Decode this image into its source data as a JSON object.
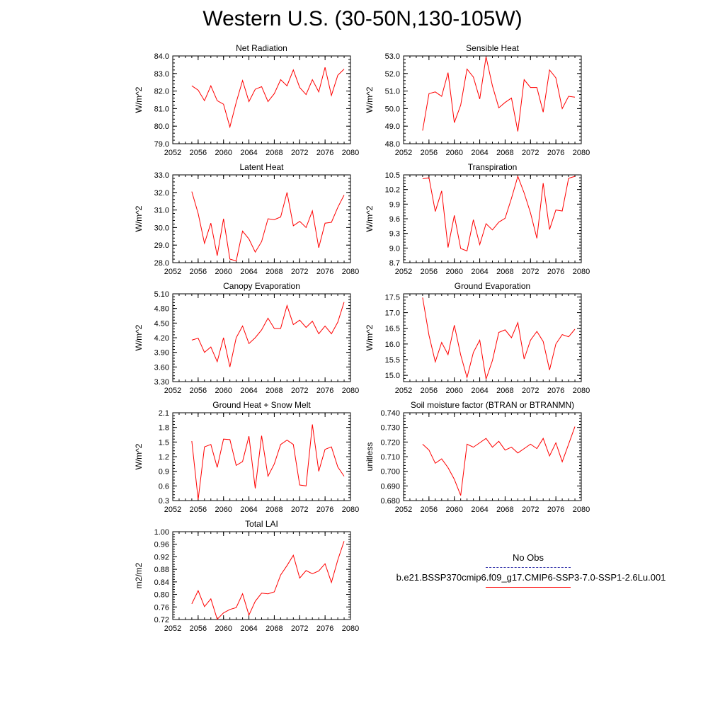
{
  "title": "Western U.S. (30-50N,130-105W)",
  "legend": {
    "obs_label": "No Obs",
    "case_label": "b.e21.BSSP370cmip6.f09_g17.CMIP6-SSP3-7.0-SSP1-2.6Lu.001",
    "obs_color": "#3333aa",
    "case_color": "#ff0000"
  },
  "chart_data": [
    {
      "type": "line",
      "title": "Net Radiation",
      "ylabel": "W/m^2",
      "xlim": [
        2052,
        2080
      ],
      "ylim": [
        79.0,
        84.0
      ],
      "xticks": [
        "2052",
        "2056",
        "2060",
        "2064",
        "2068",
        "2072",
        "2076",
        "2080"
      ],
      "yticks": [
        "79.0",
        "80.0",
        "81.0",
        "82.0",
        "83.0",
        "84.0"
      ],
      "x": [
        2055,
        2056,
        2057,
        2058,
        2059,
        2060,
        2061,
        2062,
        2063,
        2064,
        2065,
        2066,
        2067,
        2068,
        2069,
        2070,
        2071,
        2072,
        2073,
        2074,
        2075,
        2076,
        2077,
        2078,
        2079
      ],
      "series": [
        {
          "values": [
            82.3,
            82.05,
            81.45,
            82.3,
            81.45,
            81.25,
            79.95,
            81.35,
            82.6,
            81.4,
            82.1,
            82.25,
            81.4,
            81.85,
            82.65,
            82.3,
            83.2,
            82.2,
            81.8,
            82.65,
            81.95,
            83.35,
            81.75,
            82.9,
            83.25
          ]
        }
      ]
    },
    {
      "type": "line",
      "title": "Sensible Heat",
      "ylabel": "W/m^2",
      "xlim": [
        2052,
        2080
      ],
      "ylim": [
        48.0,
        53.0
      ],
      "xticks": [
        "2052",
        "2056",
        "2060",
        "2064",
        "2068",
        "2072",
        "2076",
        "2080"
      ],
      "yticks": [
        "48.0",
        "49.0",
        "50.0",
        "51.0",
        "52.0",
        "53.0"
      ],
      "x": [
        2055,
        2056,
        2057,
        2058,
        2059,
        2060,
        2061,
        2062,
        2063,
        2064,
        2065,
        2066,
        2067,
        2068,
        2069,
        2070,
        2071,
        2072,
        2073,
        2074,
        2075,
        2076,
        2077,
        2078,
        2079
      ],
      "series": [
        {
          "values": [
            48.75,
            50.85,
            50.95,
            50.7,
            52.05,
            49.2,
            50.2,
            52.25,
            51.8,
            50.55,
            52.95,
            51.3,
            50.05,
            50.35,
            50.6,
            48.7,
            51.65,
            51.2,
            51.2,
            49.8,
            52.2,
            51.75,
            50.0,
            50.7,
            50.65
          ]
        }
      ]
    },
    {
      "type": "line",
      "title": "Latent Heat",
      "ylabel": "W/m^2",
      "xlim": [
        2052,
        2080
      ],
      "ylim": [
        28.0,
        33.0
      ],
      "xticks": [
        "2052",
        "2056",
        "2060",
        "2064",
        "2068",
        "2072",
        "2076",
        "2080"
      ],
      "yticks": [
        "28.0",
        "29.0",
        "30.0",
        "31.0",
        "32.0",
        "33.0"
      ],
      "x": [
        2055,
        2056,
        2057,
        2058,
        2059,
        2060,
        2061,
        2062,
        2063,
        2064,
        2065,
        2066,
        2067,
        2068,
        2069,
        2070,
        2071,
        2072,
        2073,
        2074,
        2075,
        2076,
        2077,
        2078,
        2079
      ],
      "series": [
        {
          "values": [
            32.05,
            30.8,
            29.1,
            30.25,
            28.4,
            30.5,
            28.2,
            28.1,
            29.8,
            29.35,
            28.6,
            29.2,
            30.5,
            30.45,
            30.6,
            32.0,
            30.1,
            30.35,
            30.0,
            30.95,
            28.85,
            30.25,
            30.3,
            31.15,
            31.85
          ]
        }
      ]
    },
    {
      "type": "line",
      "title": "Transpiration",
      "ylabel": "W/m^2",
      "xlim": [
        2052,
        2080
      ],
      "ylim": [
        8.7,
        10.5
      ],
      "xticks": [
        "2052",
        "2056",
        "2060",
        "2064",
        "2068",
        "2072",
        "2076",
        "2080"
      ],
      "yticks": [
        "8.7",
        "9.0",
        "9.3",
        "9.6",
        "9.9",
        "10.2",
        "10.5"
      ],
      "x": [
        2055,
        2056,
        2057,
        2058,
        2059,
        2060,
        2061,
        2062,
        2063,
        2064,
        2065,
        2066,
        2067,
        2068,
        2069,
        2070,
        2071,
        2072,
        2073,
        2074,
        2075,
        2076,
        2077,
        2078,
        2079
      ],
      "series": [
        {
          "values": [
            10.42,
            10.44,
            9.75,
            10.17,
            9.01,
            9.67,
            8.99,
            8.94,
            9.58,
            9.07,
            9.5,
            9.37,
            9.53,
            9.61,
            10.02,
            10.47,
            10.13,
            9.72,
            9.2,
            10.33,
            9.38,
            9.78,
            9.76,
            10.43,
            10.47
          ]
        }
      ]
    },
    {
      "type": "line",
      "title": "Canopy Evaporation",
      "ylabel": "W/m^2",
      "xlim": [
        2052,
        2080
      ],
      "ylim": [
        3.3,
        5.1
      ],
      "xticks": [
        "2052",
        "2056",
        "2060",
        "2064",
        "2068",
        "2072",
        "2076",
        "2080"
      ],
      "yticks": [
        "3.30",
        "3.60",
        "3.90",
        "4.20",
        "4.50",
        "4.80",
        "5.10"
      ],
      "x": [
        2055,
        2056,
        2057,
        2058,
        2059,
        2060,
        2061,
        2062,
        2063,
        2064,
        2065,
        2066,
        2067,
        2068,
        2069,
        2070,
        2071,
        2072,
        2073,
        2074,
        2075,
        2076,
        2077,
        2078,
        2079
      ],
      "series": [
        {
          "values": [
            4.15,
            4.19,
            3.9,
            4.01,
            3.71,
            4.2,
            3.6,
            4.2,
            4.44,
            4.08,
            4.2,
            4.36,
            4.6,
            4.39,
            4.39,
            4.86,
            4.47,
            4.56,
            4.41,
            4.54,
            4.28,
            4.44,
            4.28,
            4.52,
            4.93
          ]
        }
      ]
    },
    {
      "type": "line",
      "title": "Ground Evaporation",
      "ylabel": "W/m^2",
      "xlim": [
        2052,
        2080
      ],
      "ylim": [
        14.8,
        17.6
      ],
      "xticks": [
        "2052",
        "2056",
        "2060",
        "2064",
        "2068",
        "2072",
        "2076",
        "2080"
      ],
      "yticks": [
        "15.0",
        "15.5",
        "16.0",
        "16.5",
        "17.0",
        "17.5"
      ],
      "x": [
        2055,
        2056,
        2057,
        2058,
        2059,
        2060,
        2061,
        2062,
        2063,
        2064,
        2065,
        2066,
        2067,
        2068,
        2069,
        2070,
        2071,
        2072,
        2073,
        2074,
        2075,
        2076,
        2077,
        2078,
        2079
      ],
      "series": [
        {
          "values": [
            17.48,
            16.28,
            15.43,
            16.05,
            15.66,
            16.6,
            15.65,
            14.93,
            15.73,
            16.12,
            14.88,
            15.47,
            16.37,
            16.45,
            16.2,
            16.68,
            15.52,
            16.12,
            16.4,
            16.08,
            15.17,
            16.0,
            16.3,
            16.23,
            16.47
          ]
        }
      ]
    },
    {
      "type": "line",
      "title": "Ground Heat + Snow Melt",
      "ylabel": "W/m^2",
      "xlim": [
        2052,
        2080
      ],
      "ylim": [
        0.3,
        2.1
      ],
      "xticks": [
        "2052",
        "2056",
        "2060",
        "2064",
        "2068",
        "2072",
        "2076",
        "2080"
      ],
      "yticks": [
        "0.3",
        "0.6",
        "0.9",
        "1.2",
        "1.5",
        "1.8",
        "2.1"
      ],
      "x": [
        2055,
        2056,
        2057,
        2058,
        2059,
        2060,
        2061,
        2062,
        2063,
        2064,
        2065,
        2066,
        2067,
        2068,
        2069,
        2070,
        2071,
        2072,
        2073,
        2074,
        2075,
        2076,
        2077,
        2078,
        2079
      ],
      "series": [
        {
          "values": [
            1.52,
            0.32,
            1.4,
            1.45,
            0.98,
            1.56,
            1.55,
            1.02,
            1.1,
            1.62,
            0.55,
            1.63,
            0.8,
            1.05,
            1.45,
            1.54,
            1.45,
            0.62,
            0.6,
            1.86,
            0.9,
            1.35,
            1.4,
            0.99,
            0.8
          ]
        }
      ]
    },
    {
      "type": "line",
      "title": "Soil moisture factor (BTRAN or BTRANMN)",
      "ylabel": "unitless",
      "xlim": [
        2052,
        2080
      ],
      "ylim": [
        0.68,
        0.74
      ],
      "xticks": [
        "2052",
        "2056",
        "2060",
        "2064",
        "2068",
        "2072",
        "2076",
        "2080"
      ],
      "yticks": [
        "0.680",
        "0.690",
        "0.700",
        "0.710",
        "0.720",
        "0.730",
        "0.740"
      ],
      "x": [
        2055,
        2056,
        2057,
        2058,
        2059,
        2060,
        2061,
        2062,
        2063,
        2064,
        2065,
        2066,
        2067,
        2068,
        2069,
        2070,
        2071,
        2072,
        2073,
        2074,
        2075,
        2076,
        2077,
        2078,
        2079
      ],
      "series": [
        {
          "values": [
            0.7185,
            0.7145,
            0.7055,
            0.7085,
            0.7025,
            0.6945,
            0.6835,
            0.7185,
            0.7165,
            0.7195,
            0.7225,
            0.7165,
            0.7205,
            0.7145,
            0.7165,
            0.7125,
            0.7155,
            0.7185,
            0.7155,
            0.7225,
            0.7105,
            0.7195,
            0.7065,
            0.7185,
            0.7305
          ]
        }
      ]
    },
    {
      "type": "line",
      "title": "Total LAI",
      "ylabel": "m2/m2",
      "xlim": [
        2052,
        2080
      ],
      "ylim": [
        0.72,
        1.0
      ],
      "xticks": [
        "2052",
        "2056",
        "2060",
        "2064",
        "2068",
        "2072",
        "2076",
        "2080"
      ],
      "yticks": [
        "0.72",
        "0.76",
        "0.80",
        "0.84",
        "0.88",
        "0.92",
        "0.96",
        "1.00"
      ],
      "x": [
        2055,
        2056,
        2057,
        2058,
        2059,
        2060,
        2061,
        2062,
        2063,
        2064,
        2065,
        2066,
        2067,
        2068,
        2069,
        2070,
        2071,
        2072,
        2073,
        2074,
        2075,
        2076,
        2077,
        2078,
        2079
      ],
      "series": [
        {
          "values": [
            0.77,
            0.812,
            0.761,
            0.786,
            0.721,
            0.741,
            0.752,
            0.758,
            0.802,
            0.734,
            0.778,
            0.804,
            0.802,
            0.808,
            0.862,
            0.892,
            0.925,
            0.852,
            0.876,
            0.866,
            0.875,
            0.898,
            0.838,
            0.91,
            0.97
          ]
        }
      ]
    }
  ]
}
